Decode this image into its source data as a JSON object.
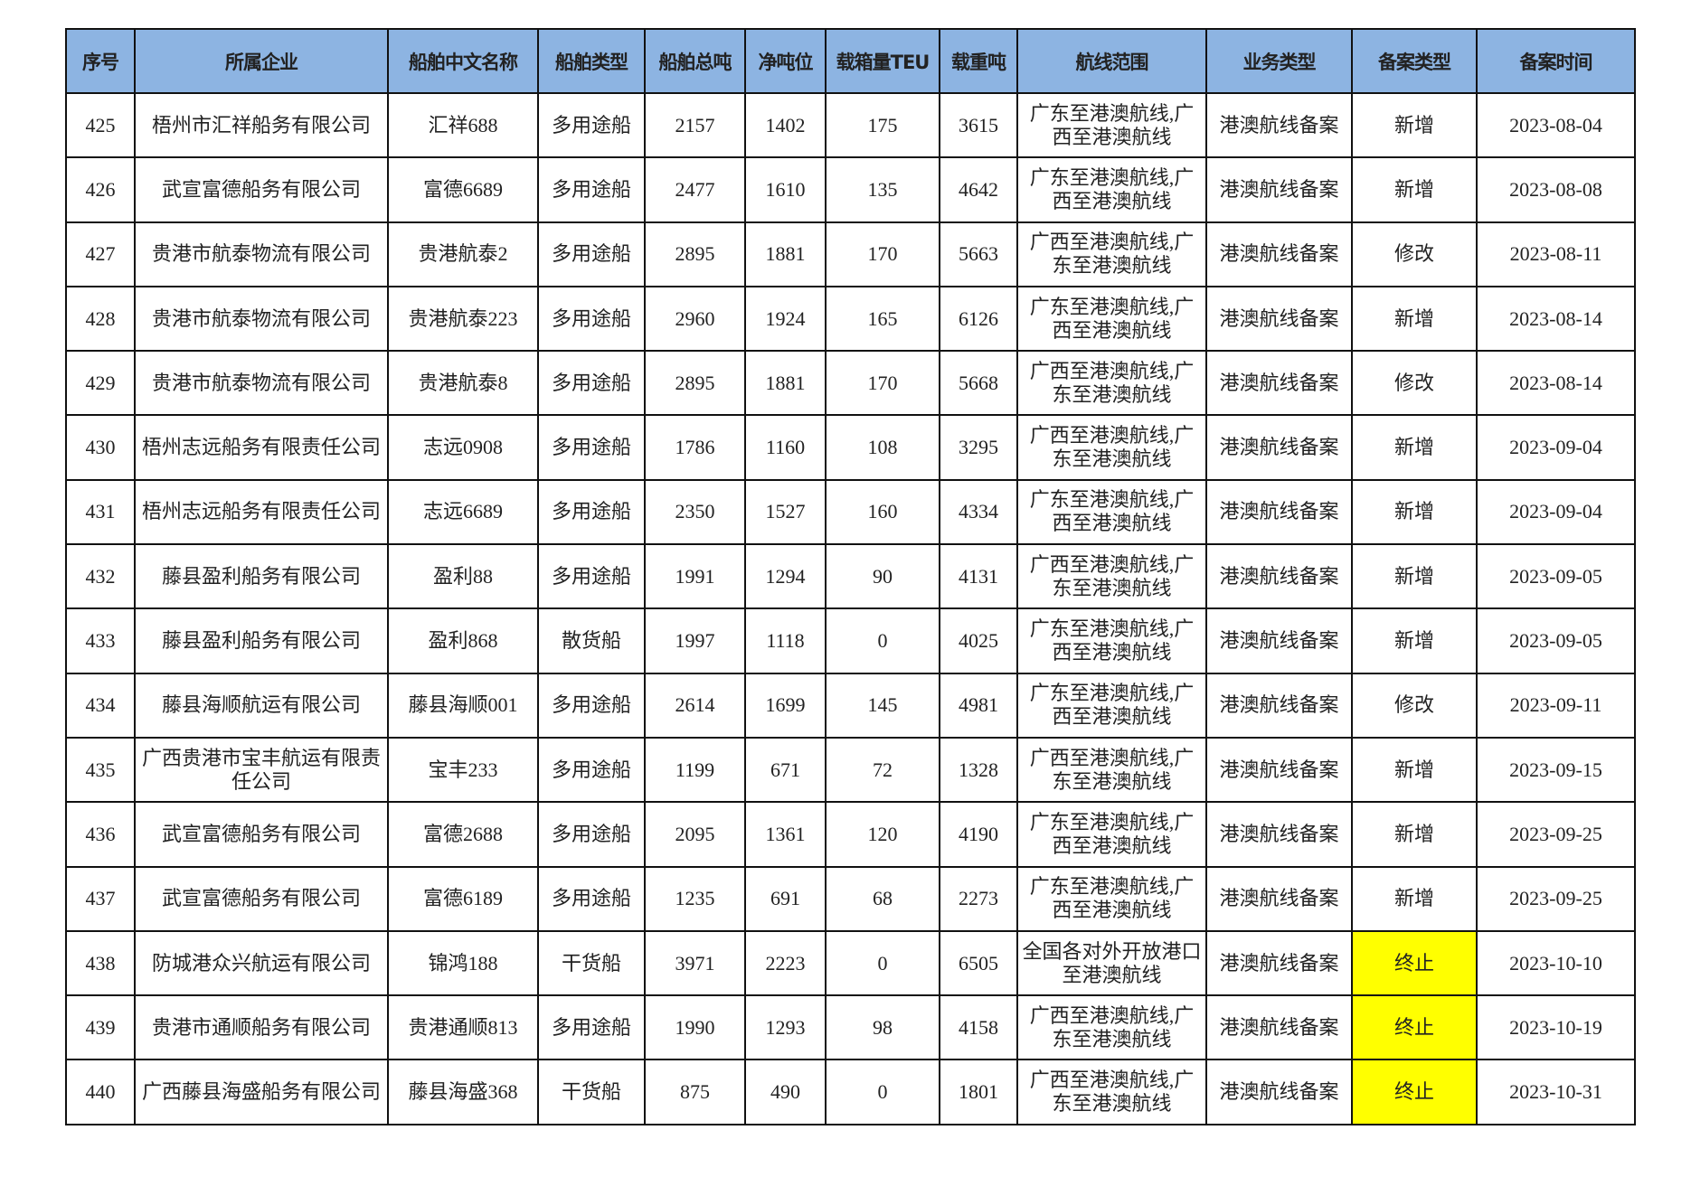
{
  "table": {
    "headers": [
      "序号",
      "所属企业",
      "船舶中文名称",
      "船舶类型",
      "船舶总吨",
      "净吨位",
      "载箱量TEU",
      "载重吨",
      "航线范围",
      "业务类型",
      "备案类型",
      "备案时间"
    ],
    "highlight_color": "#FFFF00",
    "header_color": "#8DB4E2",
    "rows": [
      [
        "425",
        "梧州市汇祥船务有限公司",
        "汇祥688",
        "多用途船",
        "2157",
        "1402",
        "175",
        "3615",
        "广东至港澳航线,广西至港澳航线",
        "港澳航线备案",
        "新增",
        "2023-08-04"
      ],
      [
        "426",
        "武宣富德船务有限公司",
        "富德6689",
        "多用途船",
        "2477",
        "1610",
        "135",
        "4642",
        "广东至港澳航线,广西至港澳航线",
        "港澳航线备案",
        "新增",
        "2023-08-08"
      ],
      [
        "427",
        "贵港市航泰物流有限公司",
        "贵港航泰2",
        "多用途船",
        "2895",
        "1881",
        "170",
        "5663",
        "广西至港澳航线,广东至港澳航线",
        "港澳航线备案",
        "修改",
        "2023-08-11"
      ],
      [
        "428",
        "贵港市航泰物流有限公司",
        "贵港航泰223",
        "多用途船",
        "2960",
        "1924",
        "165",
        "6126",
        "广东至港澳航线,广西至港澳航线",
        "港澳航线备案",
        "新增",
        "2023-08-14"
      ],
      [
        "429",
        "贵港市航泰物流有限公司",
        "贵港航泰8",
        "多用途船",
        "2895",
        "1881",
        "170",
        "5668",
        "广西至港澳航线,广东至港澳航线",
        "港澳航线备案",
        "修改",
        "2023-08-14"
      ],
      [
        "430",
        "梧州志远船务有限责任公司",
        "志远0908",
        "多用途船",
        "1786",
        "1160",
        "108",
        "3295",
        "广西至港澳航线,广东至港澳航线",
        "港澳航线备案",
        "新增",
        "2023-09-04"
      ],
      [
        "431",
        "梧州志远船务有限责任公司",
        "志远6689",
        "多用途船",
        "2350",
        "1527",
        "160",
        "4334",
        "广东至港澳航线,广西至港澳航线",
        "港澳航线备案",
        "新增",
        "2023-09-04"
      ],
      [
        "432",
        "藤县盈利船务有限公司",
        "盈利88",
        "多用途船",
        "1991",
        "1294",
        "90",
        "4131",
        "广西至港澳航线,广东至港澳航线",
        "港澳航线备案",
        "新增",
        "2023-09-05"
      ],
      [
        "433",
        "藤县盈利船务有限公司",
        "盈利868",
        "散货船",
        "1997",
        "1118",
        "0",
        "4025",
        "广东至港澳航线,广西至港澳航线",
        "港澳航线备案",
        "新增",
        "2023-09-05"
      ],
      [
        "434",
        "藤县海顺航运有限公司",
        "藤县海顺001",
        "多用途船",
        "2614",
        "1699",
        "145",
        "4981",
        "广东至港澳航线,广西至港澳航线",
        "港澳航线备案",
        "修改",
        "2023-09-11"
      ],
      [
        "435",
        "广西贵港市宝丰航运有限责任公司",
        "宝丰233",
        "多用途船",
        "1199",
        "671",
        "72",
        "1328",
        "广西至港澳航线,广东至港澳航线",
        "港澳航线备案",
        "新增",
        "2023-09-15"
      ],
      [
        "436",
        "武宣富德船务有限公司",
        "富德2688",
        "多用途船",
        "2095",
        "1361",
        "120",
        "4190",
        "广东至港澳航线,广西至港澳航线",
        "港澳航线备案",
        "新增",
        "2023-09-25"
      ],
      [
        "437",
        "武宣富德船务有限公司",
        "富德6189",
        "多用途船",
        "1235",
        "691",
        "68",
        "2273",
        "广东至港澳航线,广西至港澳航线",
        "港澳航线备案",
        "新增",
        "2023-09-25"
      ],
      [
        "438",
        "防城港众兴航运有限公司",
        "锦鸿188",
        "干货船",
        "3971",
        "2223",
        "0",
        "6505",
        "全国各对外开放港口至港澳航线",
        "港澳航线备案",
        "终止",
        "2023-10-10"
      ],
      [
        "439",
        "贵港市通顺船务有限公司",
        "贵港通顺813",
        "多用途船",
        "1990",
        "1293",
        "98",
        "4158",
        "广西至港澳航线,广东至港澳航线",
        "港澳航线备案",
        "终止",
        "2023-10-19"
      ],
      [
        "440",
        "广西藤县海盛船务有限公司",
        "藤县海盛368",
        "干货船",
        "875",
        "490",
        "0",
        "1801",
        "广西至港澳航线,广东至港澳航线",
        "港澳航线备案",
        "终止",
        "2023-10-31"
      ]
    ]
  }
}
